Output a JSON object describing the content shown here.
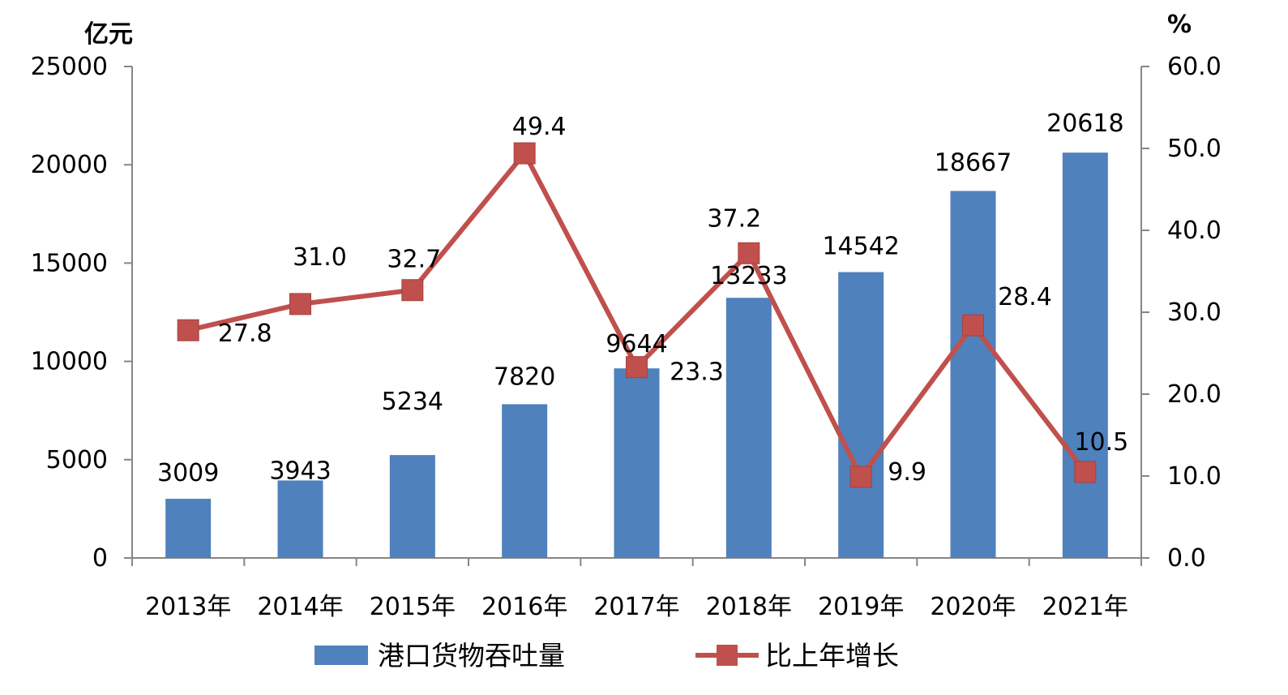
{
  "chart_data": {
    "type": "bar",
    "categories": [
      "2013年",
      "2014年",
      "2015年",
      "2016年",
      "2017年",
      "2018年",
      "2019年",
      "2020年",
      "2021年"
    ],
    "series": [
      {
        "name": "港口货物吞吐量",
        "type": "bar",
        "axis": "left",
        "color": "#4F81BD",
        "values": [
          3009,
          3943,
          5234,
          7820,
          9644,
          13233,
          14542,
          18667,
          20618
        ],
        "labels": [
          "3009",
          "3943",
          "5234",
          "7820",
          "9644",
          "13233",
          "14542",
          "18667",
          "20618"
        ]
      },
      {
        "name": "比上年增长",
        "type": "line",
        "axis": "right",
        "color": "#C0504D",
        "values": [
          27.8,
          31.0,
          32.7,
          49.4,
          23.3,
          37.2,
          9.9,
          28.4,
          10.5
        ],
        "labels": [
          "27.8",
          "31.0",
          "32.7",
          "49.4",
          "23.3",
          "37.2",
          "9.9",
          "28.4",
          "10.5"
        ]
      }
    ],
    "y_left": {
      "unit": "亿元",
      "ylim": [
        0,
        25000
      ],
      "ticks": [
        "0",
        "5000",
        "10000",
        "15000",
        "20000",
        "25000"
      ]
    },
    "y_right": {
      "unit": "%",
      "ylim": [
        0,
        60
      ],
      "ticks": [
        "0.0",
        "10.0",
        "20.0",
        "30.0",
        "40.0",
        "50.0",
        "60.0"
      ]
    },
    "grid": false,
    "legend_position": "bottom"
  }
}
